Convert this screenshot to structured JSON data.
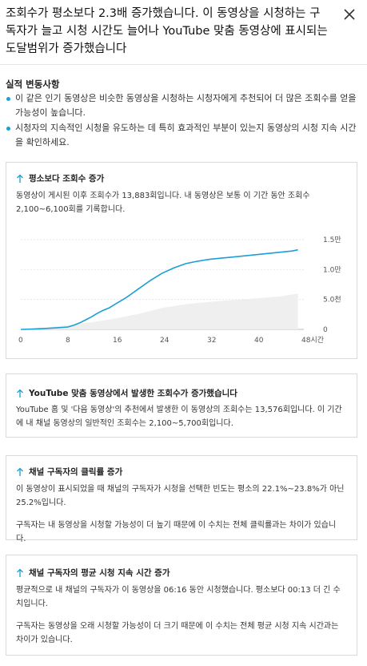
{
  "header": {
    "title": "조회수가 평소보다 2.3배 증가했습니다. 이 동영상을 시청하는 구독자가 늘고 시청 시간도 늘어나 YouTube 맞춤 동영상에 표시되는 도달범위가 증가했습니다",
    "close_icon": "close-icon"
  },
  "summary": {
    "heading": "실적 변동사항",
    "bullets": [
      "이 같은 인기 동영상은 비슷한 동영상을 시청하는 시청자에게 추천되어 더 많은 조회수를 얻을 가능성이 높습니다.",
      "시청자의 지속적인 시청을 유도하는 데 특히 효과적인 부분이 있는지 동영상의 시청 지속 시간을 확인하세요."
    ],
    "bullet_color": "#1a9fd6"
  },
  "cards": [
    {
      "icon": "arrow-up-icon",
      "title": "평소보다 조회수 증가",
      "body": "동영상이 게시된 이후 조회수가 13,883회입니다. 내 동영상은 보통 이 기간 동안 조회수 2,100~6,100회를 기록합니다."
    },
    {
      "icon": "arrow-up-icon",
      "title": "YouTube 맞춤 동영상에서 발생한 조회수가 증가했습니다",
      "body": "YouTube 홈 및 '다음 동영상'의 추천에서 발생한 이 동영상의 조회수는 13,576회입니다. 이 기간에 내 채널 동영상의 일반적인 조회수는 2,100~5,700회입니다."
    },
    {
      "icon": "arrow-up-icon",
      "title": "채널 구독자의 클릭률 증가",
      "body": "이 동영상이 표시되었을 때 채널의 구독자가 시청을 선택한 빈도는 평소의 22.1%~23.8%가 아닌 25.2%입니다.",
      "body2": "구독자는 내 동영상을 시청할 가능성이 더 높기 때문에 이 수치는 전체 클릭률과는 차이가 있습니다."
    },
    {
      "icon": "arrow-up-icon",
      "title": "채널 구독자의 평균 시청 지속 시간 증가",
      "body": "평균적으로 내 채널의 구독자가 이 동영상을 06:16 동안 시청했습니다. 평소보다 00:13 더 긴 수치입니다.",
      "body2": "구독자는 동영상을 오래 시청할 가능성이 더 크기 때문에 이 수치는 전체 평균 시청 지속 시간과는 차이가 있습니다."
    }
  ],
  "chart_data": {
    "type": "line",
    "x_tick_labels": [
      "0",
      "8",
      "16",
      "24",
      "32",
      "40",
      "48시간"
    ],
    "x_ticks": [
      0,
      8,
      16,
      24,
      32,
      40,
      48
    ],
    "y_tick_labels": [
      "0",
      "5.0천",
      "1.0만",
      "1.5만"
    ],
    "y_ticks": [
      0,
      5000,
      10000,
      15000
    ],
    "xlim": [
      0,
      48
    ],
    "ylim": [
      0,
      15000
    ],
    "series": [
      {
        "color": "#1a9fd6",
        "x": [
          0,
          2,
          4,
          6,
          8,
          9,
          10,
          11,
          12,
          13,
          14,
          15,
          16,
          17,
          18,
          19,
          20,
          21,
          22,
          23,
          24,
          26,
          28,
          30,
          32,
          34,
          36,
          38,
          40,
          42,
          44,
          46,
          47
        ],
        "y": [
          0,
          50,
          150,
          250,
          400,
          700,
          1100,
          1600,
          2100,
          2700,
          3200,
          3600,
          4200,
          4800,
          5400,
          6100,
          6800,
          7500,
          8200,
          8800,
          9400,
          10300,
          11000,
          11400,
          11700,
          11900,
          12100,
          12300,
          12500,
          12700,
          12900,
          13100,
          13300
        ]
      }
    ],
    "band": {
      "color": "#efefef",
      "x": [
        0,
        4,
        8,
        12,
        16,
        20,
        24,
        28,
        32,
        36,
        40,
        44,
        47
      ],
      "lower": [
        0,
        0,
        0,
        0,
        0,
        0,
        0,
        0,
        0,
        0,
        0,
        0,
        0
      ],
      "upper": [
        0,
        300,
        700,
        1200,
        1800,
        2600,
        3600,
        4200,
        4600,
        4900,
        5200,
        5500,
        6000
      ]
    }
  }
}
